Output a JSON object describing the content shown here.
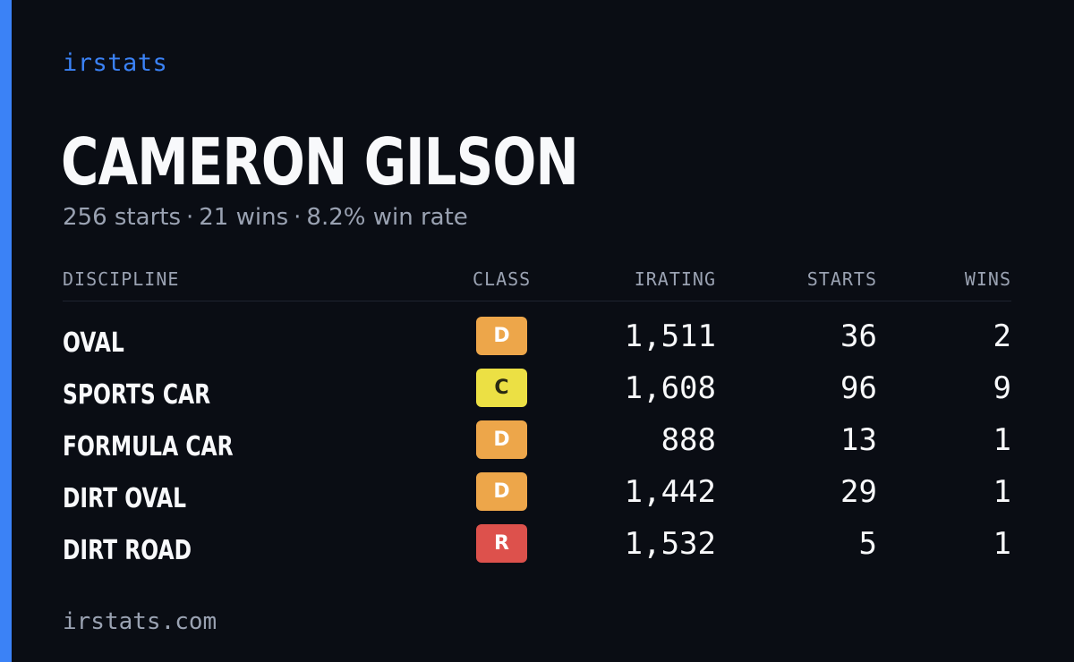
{
  "brand": "irstats",
  "driver": {
    "name": "CAMERON GILSON",
    "starts": "256 starts",
    "wins": "21 wins",
    "win_rate": "8.2% win rate",
    "separator": "·"
  },
  "table": {
    "headers": {
      "discipline": "DISCIPLINE",
      "class": "CLASS",
      "irating": "IRATING",
      "starts": "STARTS",
      "wins": "WINS"
    },
    "rows": [
      {
        "discipline": "OVAL",
        "class": "D",
        "class_color": "#eda64a",
        "irating": "1,511",
        "starts": "36",
        "wins": "2"
      },
      {
        "discipline": "SPORTS CAR",
        "class": "C",
        "class_color": "#ece044",
        "irating": "1,608",
        "starts": "96",
        "wins": "9"
      },
      {
        "discipline": "FORMULA CAR",
        "class": "D",
        "class_color": "#eda64a",
        "irating": "888",
        "starts": "13",
        "wins": "1"
      },
      {
        "discipline": "DIRT OVAL",
        "class": "D",
        "class_color": "#eda64a",
        "irating": "1,442",
        "starts": "29",
        "wins": "1"
      },
      {
        "discipline": "DIRT ROAD",
        "class": "R",
        "class_color": "#dd514c",
        "irating": "1,532",
        "starts": "5",
        "wins": "1"
      }
    ]
  },
  "footer": "irstats.com",
  "colors": {
    "accent": "#3b82f6",
    "background": "#0a0d14",
    "muted": "#9aa2b2",
    "class_c_text": "#2a2a12"
  }
}
